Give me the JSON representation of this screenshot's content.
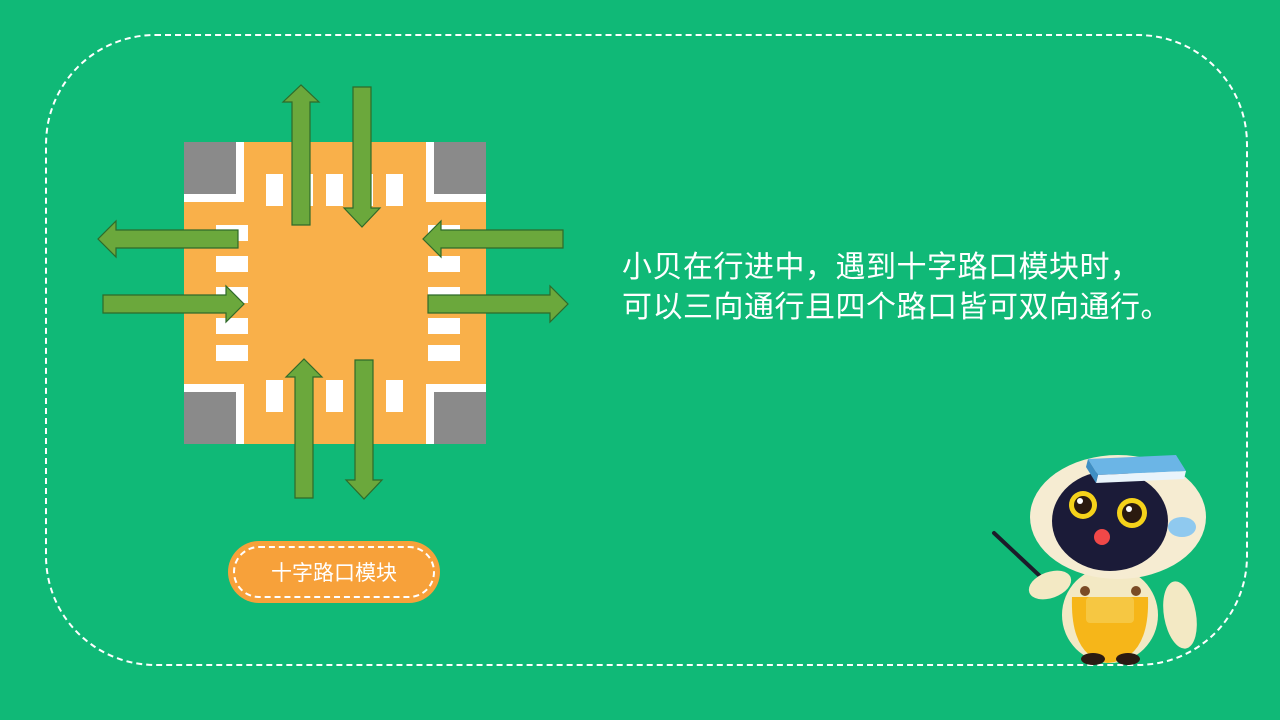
{
  "description": {
    "line1": "小贝在行进中，遇到十字路口模块时，",
    "line2": "可以三向通行且四个路口皆可双向通行。"
  },
  "module_label": "十字路口模块",
  "colors": {
    "background": "#10b977",
    "road": "#f9b04a",
    "corner_block": "#8a8a8a",
    "arrow": "#6ba83c",
    "pill": "#f7a13a"
  }
}
